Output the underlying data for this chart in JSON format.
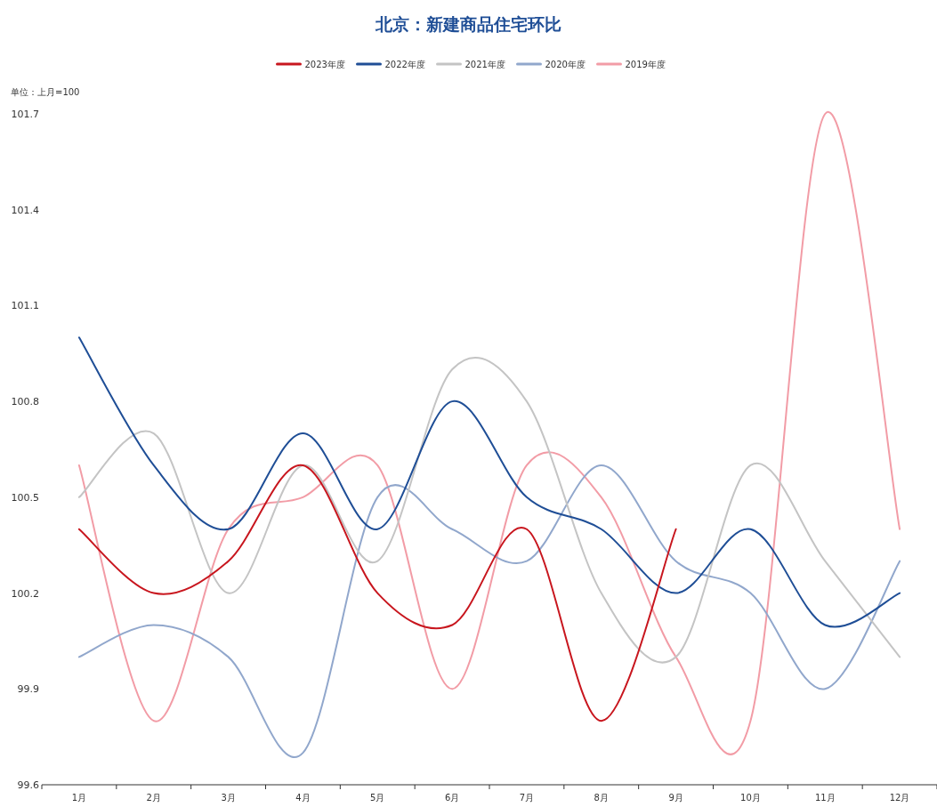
{
  "chart_data": {
    "type": "line",
    "title": "北京：新建商品住宅环比",
    "annotations": [
      "单位：上月=100"
    ],
    "legend": "top",
    "grid": false,
    "marker": "none",
    "line_style": "solid",
    "categories": [
      "1月",
      "2月",
      "3月",
      "4月",
      "5月",
      "6月",
      "7月",
      "8月",
      "9月",
      "10月",
      "11月",
      "12月"
    ],
    "ylim": [
      99.6,
      101.7
    ],
    "yticks": [
      99.6,
      99.9,
      100.2,
      100.5,
      100.8,
      101.1,
      101.4,
      101.7
    ],
    "series": [
      {
        "name": "2023年度",
        "color": "#c8161e",
        "values": [
          100.4,
          100.2,
          100.3,
          100.6,
          100.2,
          100.1,
          100.4,
          99.8,
          100.4,
          null,
          null,
          null
        ]
      },
      {
        "name": "2022年度",
        "color": "#1f4e96",
        "values": [
          101.0,
          100.6,
          100.4,
          100.7,
          100.4,
          100.8,
          100.5,
          100.4,
          100.2,
          100.4,
          100.1,
          100.2
        ]
      },
      {
        "name": "2021年度",
        "color": "#c4c4c4",
        "values": [
          100.5,
          100.7,
          100.2,
          100.6,
          100.3,
          100.9,
          100.8,
          100.2,
          100.0,
          100.6,
          100.3,
          100.0
        ]
      },
      {
        "name": "2020年度",
        "color": "#91a7cc",
        "values": [
          100.0,
          100.1,
          100.0,
          99.7,
          100.5,
          100.4,
          100.3,
          100.6,
          100.3,
          100.2,
          99.9,
          100.3
        ]
      },
      {
        "name": "2019年度",
        "color": "#f29ca6",
        "values": [
          100.6,
          99.8,
          100.4,
          100.5,
          100.6,
          99.9,
          100.6,
          100.5,
          100.0,
          99.8,
          101.7,
          100.4
        ]
      }
    ]
  }
}
